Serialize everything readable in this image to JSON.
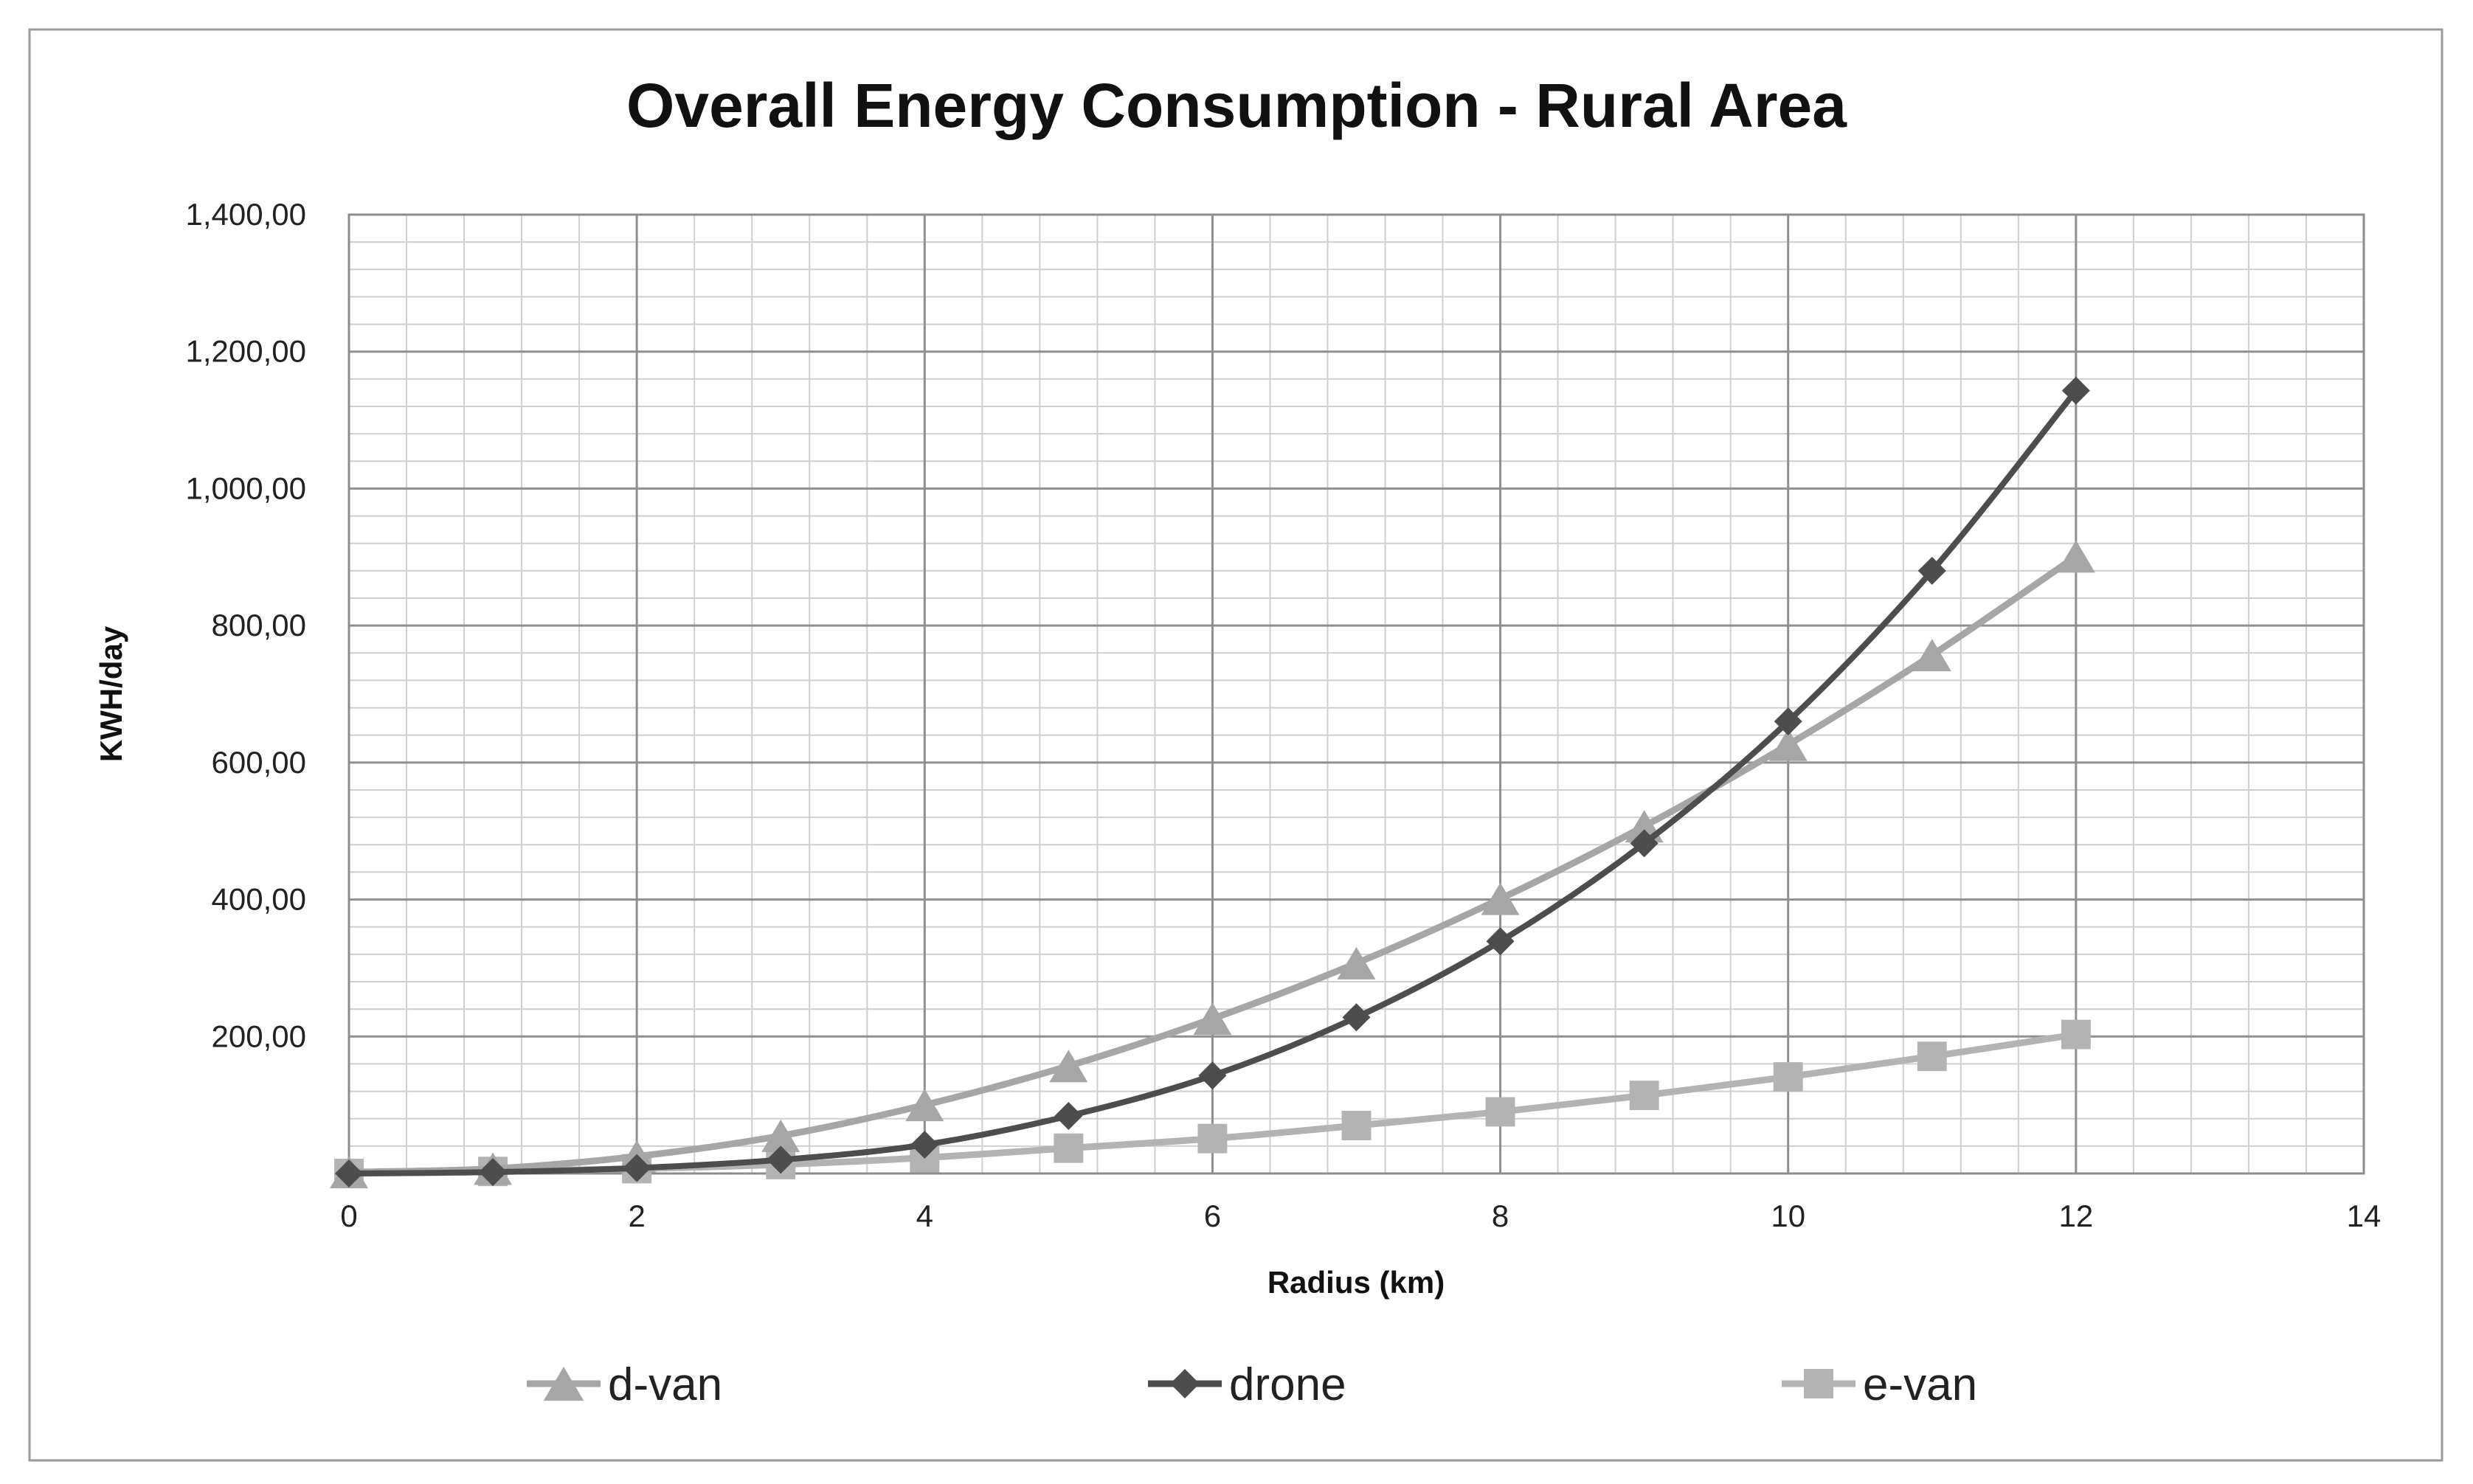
{
  "chart_data": {
    "type": "line",
    "title": "Overall Energy Consumption - Rural Area",
    "xlabel": "Radius (km)",
    "ylabel": "KWH/day",
    "xlim": [
      0,
      14
    ],
    "ylim": [
      0,
      1400
    ],
    "x_ticks": [
      0,
      2,
      4,
      6,
      8,
      10,
      12,
      14
    ],
    "x_tick_labels": [
      "0",
      "2",
      "4",
      "6",
      "8",
      "10",
      "12",
      "14"
    ],
    "y_ticks": [
      200,
      400,
      600,
      800,
      1000,
      1200,
      1400
    ],
    "y_tick_labels": [
      "200,00",
      "400,00",
      "600,00",
      "800,00",
      "1,000,00",
      "1,200,00",
      "1,400,00"
    ],
    "grid": true,
    "legend_position": "bottom",
    "series": [
      {
        "name": "d-van",
        "marker": "triangle",
        "color": "#a6a6a6",
        "x": [
          0,
          1,
          2,
          3,
          4,
          5,
          6,
          7,
          8,
          9,
          10,
          11,
          12
        ],
        "values": [
          2,
          7,
          25,
          55,
          100,
          157,
          226,
          307,
          401,
          507,
          626,
          757,
          901
        ]
      },
      {
        "name": "drone",
        "marker": "diamond",
        "color": "#4d4d4d",
        "x": [
          0,
          1,
          2,
          3,
          4,
          5,
          6,
          7,
          8,
          9,
          10,
          11,
          12
        ],
        "values": [
          0,
          2,
          8,
          20,
          42,
          84,
          143,
          228,
          339,
          482,
          660,
          880,
          1143
        ]
      },
      {
        "name": "e-van",
        "marker": "square",
        "color": "#b3b3b3",
        "x": [
          0,
          1,
          2,
          3,
          4,
          5,
          6,
          7,
          8,
          9,
          10,
          11,
          12
        ],
        "values": [
          0,
          3,
          7,
          13,
          23,
          37,
          51,
          70,
          90,
          114,
          141,
          171,
          203
        ]
      }
    ]
  }
}
